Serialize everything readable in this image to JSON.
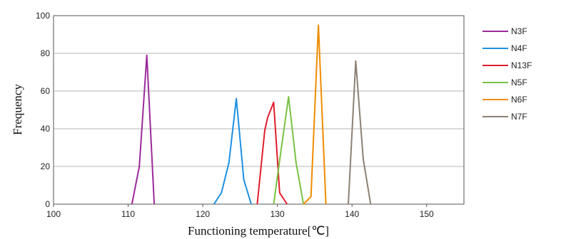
{
  "chart_data": {
    "type": "line",
    "title": "",
    "xlabel": "Functioning temperature[℃]",
    "ylabel": "Frequency",
    "xlim": [
      100,
      155
    ],
    "ylim": [
      0,
      100
    ],
    "xticks": [
      100,
      110,
      120,
      130,
      140,
      150
    ],
    "yticks": [
      0,
      20,
      40,
      60,
      80,
      100
    ],
    "grid": "horizontal",
    "legend_position": "right",
    "series": [
      {
        "name": "N3F",
        "color": "#9b2a9b",
        "x": [
          110.5,
          111.5,
          112.5,
          113.5
        ],
        "y": [
          0,
          20,
          79,
          0
        ]
      },
      {
        "name": "N4F",
        "color": "#1e90e0",
        "x": [
          121.5,
          122.5,
          123.5,
          124.5,
          125.5,
          126.5
        ],
        "y": [
          0,
          6,
          22,
          56,
          13,
          0
        ]
      },
      {
        "name": "N13F",
        "color": "#e01e2e",
        "x": [
          127.3,
          128.3,
          128.7,
          129.5,
          130.3,
          131.3
        ],
        "y": [
          0,
          39,
          46,
          54,
          6,
          0
        ]
      },
      {
        "name": "N5F",
        "color": "#7ac143",
        "x": [
          129.5,
          130.5,
          131.5,
          132.5,
          133.5
        ],
        "y": [
          0,
          29,
          57,
          22,
          0
        ]
      },
      {
        "name": "N6F",
        "color": "#f08c00",
        "x": [
          133.5,
          134.5,
          135.5,
          136.5
        ],
        "y": [
          0,
          4,
          95,
          0
        ]
      },
      {
        "name": "N7F",
        "color": "#8c8075",
        "x": [
          139.5,
          140.5,
          141.5,
          142.5
        ],
        "y": [
          0,
          76,
          24,
          0
        ]
      }
    ]
  }
}
